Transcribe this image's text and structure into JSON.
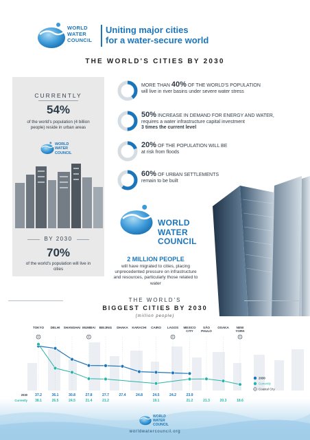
{
  "header": {
    "brand": [
      "WORLD",
      "WATER",
      "COUNCIL"
    ],
    "headline": [
      "Uniting major cities",
      "for a water-secure world"
    ]
  },
  "section_title": "THE WORLD'S CITIES BY 2030",
  "left_panel": {
    "currently_label": "CURRENTLY",
    "currently_value": "54%",
    "currently_text": "of the world's population (4 billion people) reside in urban areas",
    "brand": [
      "WORLD",
      "WATER",
      "COUNCIL"
    ],
    "by2030_label": "BY 2030",
    "by2030_value": "70%",
    "by2030_text": "of the world's population will live in cities"
  },
  "stats": [
    {
      "percent": 40,
      "pre": "MORE THAN ",
      "big": "40%",
      "rest": " OF THE WORLD'S POPULATION",
      "line2": "will live in river basins under severe water stress",
      "line3": ""
    },
    {
      "percent": 50,
      "pre": "",
      "big": "50%",
      "rest": " INCREASE IN DEMAND FOR ENERGY AND WATER,",
      "line2": "requires a water infrastructure capital investment",
      "line3": "3 times the current level"
    },
    {
      "percent": 20,
      "pre": "",
      "big": "20%",
      "rest": " OF THE POPULATION WILL BE",
      "line2": "at risk from floods",
      "line3": ""
    },
    {
      "percent": 60,
      "pre": "",
      "big": "60%",
      "rest": " OF URBAN SETTLEMENTS",
      "line2": "remain to be built",
      "line3": ""
    }
  ],
  "middle": {
    "brand": [
      "WORLD",
      "WATER",
      "COUNCIL"
    ],
    "headline": "2 MILLION PEOPLE",
    "text": "will have migrated to cities, placing unprecedented pressure on infrastructure and resources, particularly those related to water"
  },
  "chart_titles": {
    "line1": "THE WORLD'S",
    "line2": "BIGGEST CITIES BY 2030",
    "units": "(million people)"
  },
  "chart_data": {
    "type": "line",
    "categories": [
      "TOKYO",
      "DELHI",
      "SHANGHAI",
      "MUMBAI",
      "BEIJING",
      "DHAKA",
      "KARACHI",
      "CAIRO",
      "LAGOS",
      "MEXICO CITY",
      "SÃO PAULO",
      "OSAKA",
      "NEW YORK"
    ],
    "series": [
      {
        "name": "2030",
        "color": "#1b75bb",
        "values": [
          37.2,
          36.1,
          30.8,
          27.8,
          27.7,
          27.4,
          24.8,
          24.5,
          24.2,
          23.9,
          null,
          null,
          null
        ]
      },
      {
        "name": "Currently",
        "color": "#27b3a8",
        "values": [
          38.1,
          26.5,
          24.5,
          21.4,
          21.2,
          null,
          null,
          19.1,
          null,
          21.2,
          21.3,
          20.3,
          18.6
        ]
      }
    ],
    "coastal_cities": [
      "TOKYO",
      "MUMBAI",
      "LAGOS",
      "NEW YORK"
    ],
    "row_labels": [
      "2030",
      "Currently"
    ],
    "legend": [
      "2030",
      "Currently",
      "Coastal City"
    ],
    "coastal_symbol": "©"
  },
  "footer": {
    "brand": [
      "WORLD",
      "WATER",
      "COUNCIL"
    ],
    "url": "worldwatercouncil.org"
  },
  "colors": {
    "accent": "#1b75bb",
    "teal": "#27b3a8",
    "panel": "#e9e9ea"
  },
  "icons": [
    "water-drop-logo-icon",
    "percentage-ring-icon",
    "skyscraper-illustration",
    "coastal-city-icon"
  ]
}
